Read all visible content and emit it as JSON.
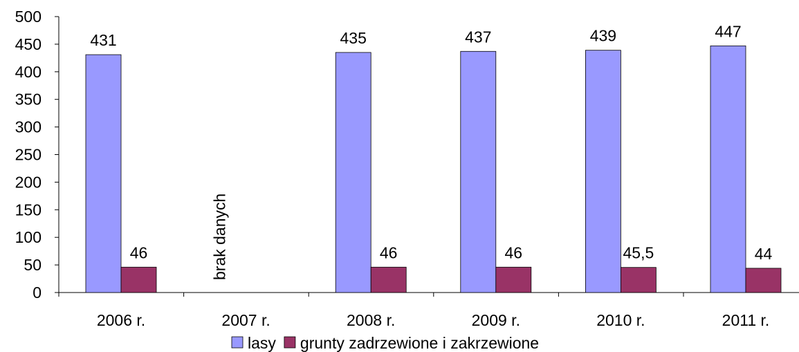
{
  "chart_data": {
    "type": "bar",
    "categories": [
      "2006 r.",
      "2007 r.",
      "2008 r.",
      "2009 r.",
      "2010 r.",
      "2011 r."
    ],
    "series": [
      {
        "name": "lasy",
        "color": "#9999ff",
        "values": [
          431,
          null,
          435,
          437,
          439,
          447
        ],
        "labels": [
          "431",
          "",
          "435",
          "437",
          "439",
          "447"
        ]
      },
      {
        "name": "grunty zadrzewione i zakrzewione",
        "color": "#993366",
        "values": [
          46,
          null,
          46,
          46,
          45.5,
          44
        ],
        "labels": [
          "46",
          "",
          "46",
          "46",
          "45,5",
          "44"
        ]
      }
    ],
    "ylim": [
      0,
      500
    ],
    "yticks": [
      0,
      50,
      100,
      150,
      200,
      250,
      300,
      350,
      400,
      450,
      500
    ],
    "annotations": [
      {
        "category": "2007 r.",
        "text": "brak danych"
      }
    ],
    "legend_position": "bottom",
    "grid": false
  }
}
